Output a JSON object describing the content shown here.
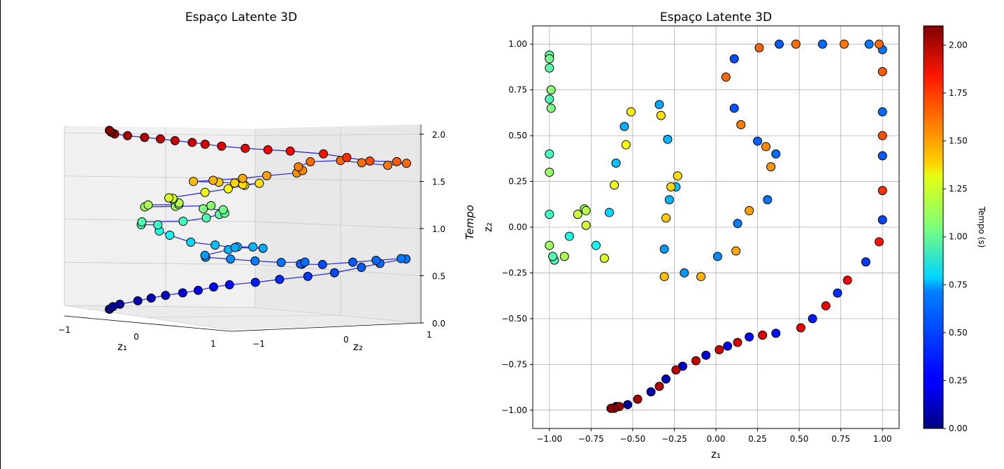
{
  "chart_data": [
    {
      "type": "scatter3d",
      "title": "Espaço Latente 3D",
      "xlabel": "z₁",
      "ylabel": "z₂",
      "zlabel": "Tempo",
      "x_ticks": [
        "−1",
        "0",
        "1"
      ],
      "y_ticks": [
        "−1",
        "0",
        "1"
      ],
      "z_ticks": [
        "0.0",
        "0.5",
        "1.0",
        "1.5",
        "2.0"
      ],
      "zlim": [
        0,
        2.1
      ],
      "colormap": "jet",
      "line_color": "#3333dd",
      "points_note": "same points as the 2D panel, z = time",
      "series_ref": "shared"
    },
    {
      "type": "scatter",
      "title": "Espaço Latente 3D",
      "xlabel": "z₁",
      "ylabel": "z₂",
      "xlim": [
        -1.1,
        1.1
      ],
      "ylim": [
        -1.1,
        1.1
      ],
      "x_ticks": [
        "−1.00",
        "−0.75",
        "−0.50",
        "−0.25",
        "0.00",
        "0.25",
        "0.50",
        "0.75",
        "1.00"
      ],
      "y_ticks": [
        "−1.00",
        "−0.75",
        "−0.50",
        "−0.25",
        "0.00",
        "0.25",
        "0.50",
        "0.75",
        "1.00"
      ],
      "grid": true,
      "colorbar": {
        "label": "Tempo (s)",
        "range": [
          0,
          2.1
        ],
        "ticks": [
          "0.00",
          "0.25",
          "0.50",
          "0.75",
          "1.00",
          "1.25",
          "1.50",
          "1.75",
          "2.00"
        ],
        "colormap": "jet"
      }
    }
  ],
  "points": [
    {
      "x": -0.63,
      "y": -0.99,
      "t": 0.0
    },
    {
      "x": -0.6,
      "y": -0.98,
      "t": 0.03
    },
    {
      "x": -0.53,
      "y": -0.97,
      "t": 0.06
    },
    {
      "x": -0.39,
      "y": -0.9,
      "t": 0.1
    },
    {
      "x": -0.3,
      "y": -0.83,
      "t": 0.13
    },
    {
      "x": -0.2,
      "y": -0.76,
      "t": 0.16
    },
    {
      "x": -0.06,
      "y": -0.7,
      "t": 0.19
    },
    {
      "x": 0.07,
      "y": -0.65,
      "t": 0.22
    },
    {
      "x": 0.2,
      "y": -0.6,
      "t": 0.26
    },
    {
      "x": 0.36,
      "y": -0.58,
      "t": 0.29
    },
    {
      "x": 0.58,
      "y": -0.5,
      "t": 0.32
    },
    {
      "x": 0.73,
      "y": -0.36,
      "t": 0.35
    },
    {
      "x": 0.9,
      "y": -0.19,
      "t": 0.38
    },
    {
      "x": 1.0,
      "y": 0.04,
      "t": 0.41
    },
    {
      "x": 1.0,
      "y": 0.39,
      "t": 0.45
    },
    {
      "x": 1.0,
      "y": 0.63,
      "t": 0.48
    },
    {
      "x": 1.0,
      "y": 0.97,
      "t": 0.51
    },
    {
      "x": 0.92,
      "y": 1.0,
      "t": 0.51
    },
    {
      "x": 0.64,
      "y": 1.0,
      "t": 0.48
    },
    {
      "x": 0.38,
      "y": 1.0,
      "t": 0.45
    },
    {
      "x": 0.11,
      "y": 0.92,
      "t": 0.42
    },
    {
      "x": 0.11,
      "y": 0.65,
      "t": 0.44
    },
    {
      "x": 0.25,
      "y": 0.47,
      "t": 0.46
    },
    {
      "x": 0.36,
      "y": 0.4,
      "t": 0.49
    },
    {
      "x": 0.31,
      "y": 0.15,
      "t": 0.5
    },
    {
      "x": 0.13,
      "y": 0.02,
      "t": 0.52
    },
    {
      "x": 0.01,
      "y": -0.16,
      "t": 0.55
    },
    {
      "x": -0.19,
      "y": -0.25,
      "t": 0.57
    },
    {
      "x": -0.31,
      "y": -0.12,
      "t": 0.58
    },
    {
      "x": -0.28,
      "y": 0.15,
      "t": 0.63
    },
    {
      "x": -0.24,
      "y": 0.22,
      "t": 0.66
    },
    {
      "x": -0.29,
      "y": 0.48,
      "t": 0.64
    },
    {
      "x": -0.34,
      "y": 0.67,
      "t": 0.61
    },
    {
      "x": -0.55,
      "y": 0.55,
      "t": 0.62
    },
    {
      "x": -0.6,
      "y": 0.35,
      "t": 0.66
    },
    {
      "x": -0.64,
      "y": 0.08,
      "t": 0.71
    },
    {
      "x": -0.72,
      "y": -0.1,
      "t": 0.8
    },
    {
      "x": -0.88,
      "y": -0.05,
      "t": 0.84
    },
    {
      "x": -1.0,
      "y": 0.07,
      "t": 0.9
    },
    {
      "x": -0.97,
      "y": -0.18,
      "t": 0.92
    },
    {
      "x": -0.98,
      "y": -0.16,
      "t": 0.95
    },
    {
      "x": -1.0,
      "y": 0.4,
      "t": 0.92
    },
    {
      "x": -1.0,
      "y": 0.7,
      "t": 0.94
    },
    {
      "x": -1.0,
      "y": 0.87,
      "t": 0.97
    },
    {
      "x": -1.0,
      "y": 0.94,
      "t": 0.98
    },
    {
      "x": -1.0,
      "y": 0.92,
      "t": 1.02
    },
    {
      "x": -0.99,
      "y": 0.65,
      "t": 1.05
    },
    {
      "x": -0.99,
      "y": 0.75,
      "t": 1.08
    },
    {
      "x": -1.0,
      "y": 0.3,
      "t": 1.1
    },
    {
      "x": -1.0,
      "y": -0.1,
      "t": 1.12
    },
    {
      "x": -0.91,
      "y": -0.16,
      "t": 1.15
    },
    {
      "x": -0.79,
      "y": 0.1,
      "t": 1.14
    },
    {
      "x": -0.78,
      "y": 0.09,
      "t": 1.16
    },
    {
      "x": -0.83,
      "y": 0.07,
      "t": 1.2
    },
    {
      "x": -0.78,
      "y": 0.01,
      "t": 1.22
    },
    {
      "x": -0.67,
      "y": -0.17,
      "t": 1.24
    },
    {
      "x": -0.61,
      "y": 0.23,
      "t": 1.28
    },
    {
      "x": -0.54,
      "y": 0.45,
      "t": 1.31
    },
    {
      "x": -0.51,
      "y": 0.63,
      "t": 1.34
    },
    {
      "x": -0.33,
      "y": 0.61,
      "t": 1.37
    },
    {
      "x": -0.23,
      "y": 0.28,
      "t": 1.38
    },
    {
      "x": -0.27,
      "y": 0.22,
      "t": 1.4
    },
    {
      "x": -0.3,
      "y": 0.05,
      "t": 1.42
    },
    {
      "x": -0.31,
      "y": -0.27,
      "t": 1.45
    },
    {
      "x": -0.09,
      "y": -0.27,
      "t": 1.47
    },
    {
      "x": 0.12,
      "y": -0.13,
      "t": 1.49
    },
    {
      "x": 0.2,
      "y": 0.09,
      "t": 1.51
    },
    {
      "x": 0.33,
      "y": 0.33,
      "t": 1.53
    },
    {
      "x": 0.3,
      "y": 0.44,
      "t": 1.55
    },
    {
      "x": 0.15,
      "y": 0.56,
      "t": 1.58
    },
    {
      "x": 0.06,
      "y": 0.82,
      "t": 1.62
    },
    {
      "x": 0.26,
      "y": 0.98,
      "t": 1.63
    },
    {
      "x": 0.48,
      "y": 1.0,
      "t": 1.61
    },
    {
      "x": 0.77,
      "y": 1.0,
      "t": 1.59
    },
    {
      "x": 0.98,
      "y": 1.0,
      "t": 1.62
    },
    {
      "x": 1.0,
      "y": 0.85,
      "t": 1.65
    },
    {
      "x": 1.0,
      "y": 0.5,
      "t": 1.68
    },
    {
      "x": 1.0,
      "y": 0.2,
      "t": 1.74
    },
    {
      "x": 0.98,
      "y": -0.08,
      "t": 1.8
    },
    {
      "x": 0.79,
      "y": -0.29,
      "t": 1.84
    },
    {
      "x": 0.66,
      "y": -0.43,
      "t": 1.86
    },
    {
      "x": 0.51,
      "y": -0.55,
      "t": 1.88
    },
    {
      "x": 0.28,
      "y": -0.59,
      "t": 1.9
    },
    {
      "x": 0.13,
      "y": -0.63,
      "t": 1.92
    },
    {
      "x": 0.02,
      "y": -0.67,
      "t": 1.94
    },
    {
      "x": -0.12,
      "y": -0.73,
      "t": 1.96
    },
    {
      "x": -0.24,
      "y": -0.78,
      "t": 1.98
    },
    {
      "x": -0.34,
      "y": -0.87,
      "t": 2.0
    },
    {
      "x": -0.47,
      "y": -0.94,
      "t": 2.02
    },
    {
      "x": -0.58,
      "y": -0.98,
      "t": 2.04
    },
    {
      "x": -0.61,
      "y": -0.99,
      "t": 2.06
    },
    {
      "x": -0.63,
      "y": -0.99,
      "t": 2.08
    }
  ]
}
